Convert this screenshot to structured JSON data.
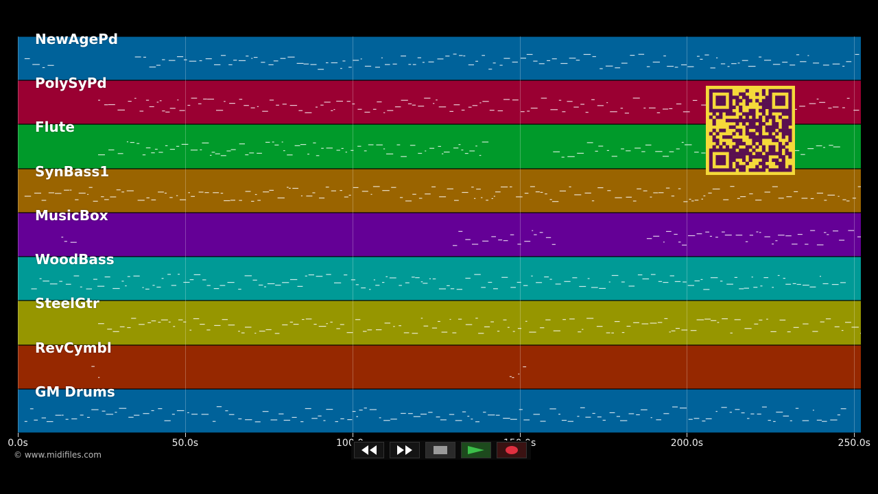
{
  "tracks": [
    {
      "name": "NewAgePd",
      "color": "#00629a"
    },
    {
      "name": "PolySyPd",
      "color": "#9a0032"
    },
    {
      "name": "Flute",
      "color": "#009a2a"
    },
    {
      "name": "SynBass1",
      "color": "#9a6400"
    },
    {
      "name": "MusicBox",
      "color": "#640096"
    },
    {
      "name": "WoodBass",
      "color": "#009a96"
    },
    {
      "name": "SteelGtr",
      "color": "#969600"
    },
    {
      "name": "RevCymbl",
      "color": "#962800"
    },
    {
      "name": "GM Drums",
      "color": "#00629a"
    }
  ],
  "axis": {
    "max_seconds": 252,
    "ticks": [
      {
        "value": 0,
        "label": "0.0s"
      },
      {
        "value": 50,
        "label": "50.0s"
      },
      {
        "value": 100,
        "label": "100.0s"
      },
      {
        "value": 150,
        "label": "150.0s"
      },
      {
        "value": 200,
        "label": "200.0s"
      },
      {
        "value": 250,
        "label": "250.0s"
      }
    ]
  },
  "copyright": "© www.midifiles.com",
  "transport": {
    "rewind_icon": "rewind-icon",
    "fast_forward_icon": "fast-forward-icon",
    "stop_icon": "stop-icon",
    "play_icon": "play-icon",
    "record_icon": "record-icon"
  },
  "qr_code": {
    "color": "#f5d93a",
    "module_color": "#5a1050"
  }
}
